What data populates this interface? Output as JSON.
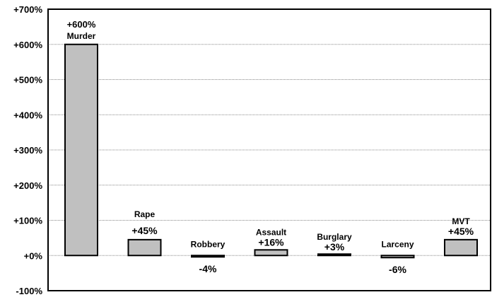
{
  "chart_data": {
    "type": "bar",
    "title": "",
    "xlabel": "",
    "ylabel": "",
    "ylim": [
      -100,
      700
    ],
    "yticks": [
      -100,
      0,
      100,
      200,
      300,
      400,
      500,
      600,
      700
    ],
    "ytick_labels": [
      "-100%",
      "+0%",
      "+100%",
      "+200%",
      "+300%",
      "+400%",
      "+500%",
      "+600%",
      "+700%"
    ],
    "grid": "horizontal dotted",
    "bar_color": "#c0c0c0",
    "categories": [
      "Murder",
      "Rape",
      "Robbery",
      "Assault",
      "Burglary",
      "Larceny",
      "MVT"
    ],
    "values": [
      600,
      45,
      -4,
      16,
      3,
      -6,
      45
    ],
    "value_labels": [
      "+600%",
      "+45%",
      "-4%",
      "+16%",
      "+3%",
      "-6%",
      "+45%"
    ]
  }
}
